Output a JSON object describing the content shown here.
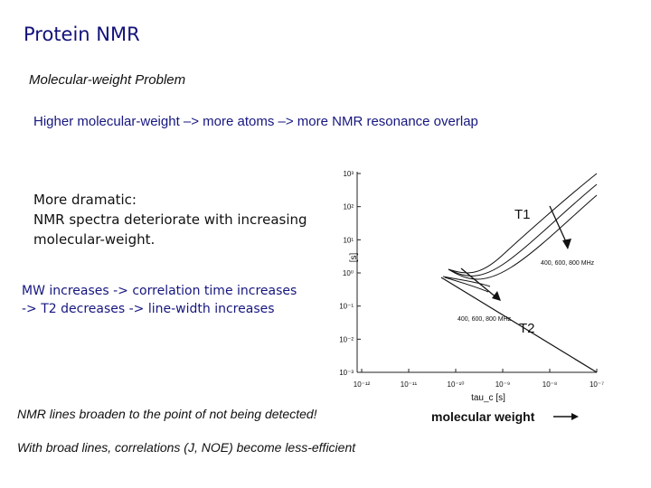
{
  "slide": {
    "title": "Protein NMR",
    "subtitle": "Molecular-weight Problem",
    "line1": "Higher molecular-weight –> more atoms –> more NMR resonance overlap",
    "dramatic_lines": [
      "More dramatic:",
      "NMR spectra deteriorate with increasing",
      "molecular-weight."
    ],
    "mw_lines": [
      "MW increases -> correlation time increases",
      "-> T2 decreases -> line-width increases"
    ],
    "broaden": "NMR lines broaden to the point of not being detected!",
    "broad_lines": "With broad lines, correlations (J, NOE) become less-efficient"
  },
  "figure": {
    "y_unit": "[s]",
    "y_ticks": [
      "10⁻³",
      "10⁻²",
      "10⁻¹",
      "10⁰",
      "10¹",
      "10²",
      "10³"
    ],
    "x_ticks": [
      "10⁻¹²",
      "10⁻¹¹",
      "10⁻¹⁰",
      "10⁻⁹",
      "10⁻⁸",
      "10⁻⁷"
    ],
    "x_label": "tau_c [s]",
    "t1_label": "T1",
    "t2_label": "T2",
    "t1_freq_label": "400, 600, 800 MHz",
    "t2_freq_label": "400, 600, 800 MHz",
    "mw_axis_label": "molecular weight"
  }
}
